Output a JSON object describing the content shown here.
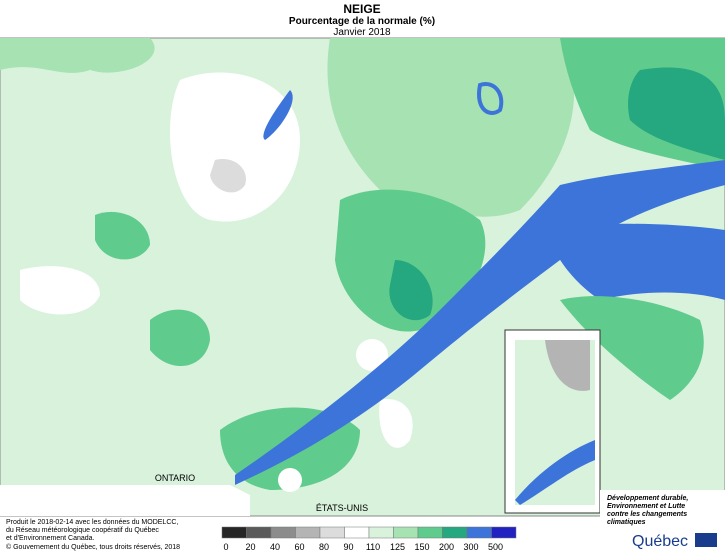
{
  "header": {
    "title": "NEIGE",
    "subtitle": "Pourcentage de la normale (%)",
    "period": "Janvier 2018"
  },
  "map_labels": {
    "ontario": "ONTARIO",
    "usa": "ÉTATS-UNIS"
  },
  "footer": {
    "lines": [
      "Produit le 2018-02-14 avec les données du MODELCC,",
      "du Réseau météorologique coopératif du Québec",
      "et d'Environnement Canada."
    ],
    "copyright": "© Gouvernement du Québec, tous droits réservés, 2018"
  },
  "legend": {
    "values": [
      0,
      20,
      40,
      60,
      80,
      90,
      110,
      125,
      150,
      200,
      300,
      500
    ],
    "colors": [
      "#262626",
      "#5a5a5a",
      "#8c8c8c",
      "#b4b4b4",
      "#dcdcdc",
      "#ffffff",
      "#d9f2dc",
      "#a6e2b2",
      "#5fcb8c",
      "#25a77f",
      "#3d74d9",
      "#2222c0"
    ]
  },
  "logo": {
    "ministry": [
      "Développement durable,",
      "Environnement et Lutte",
      "contre les changements",
      "climatiques"
    ],
    "name": "Québec"
  }
}
